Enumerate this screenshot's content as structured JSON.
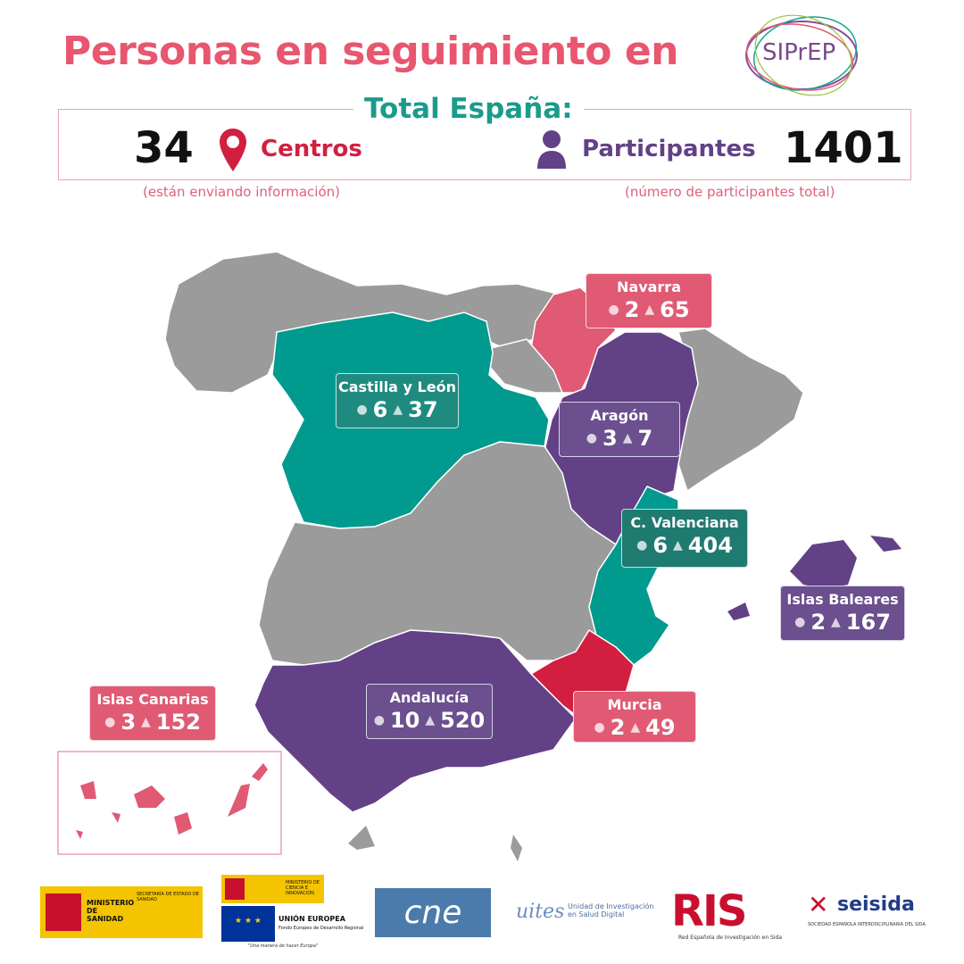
{
  "header": {
    "title": "Personas en seguimiento en",
    "logo_text": "SIPrEP"
  },
  "totals": {
    "title": "Total España:",
    "centros_count": "34",
    "centros_label": "Centros",
    "centros_note": "(están enviando información)",
    "participantes_label": "Participantes",
    "participantes_count": "1401",
    "participantes_note": "(número de participantes total)"
  },
  "colors": {
    "pink": "#e05a74",
    "purple": "#624187",
    "teal": "#009a8e",
    "red": "#d21f40",
    "gray": "#9b9b9b"
  },
  "regions": [
    {
      "name": "Navarra",
      "centros": "2",
      "participantes": "65",
      "color": "#e05a74"
    },
    {
      "name": "Castilla y León",
      "centros": "6",
      "participantes": "37",
      "color": "#009a8e"
    },
    {
      "name": "Aragón",
      "centros": "3",
      "participantes": "7",
      "color": "#624187"
    },
    {
      "name": "C. Valenciana",
      "centros": "6",
      "participantes": "404",
      "color": "#1f7a70"
    },
    {
      "name": "Islas Baleares",
      "centros": "2",
      "participantes": "167",
      "color": "#6b4f8e"
    },
    {
      "name": "Islas Canarias",
      "centros": "3",
      "participantes": "152",
      "color": "#e05a74"
    },
    {
      "name": "Andalucía",
      "centros": "10",
      "participantes": "520",
      "color": "#624187"
    },
    {
      "name": "Murcia",
      "centros": "2",
      "participantes": "49",
      "color": "#e05a74"
    }
  ],
  "footer_logos": {
    "ministerio": "MINISTERIO DE SANIDAD",
    "ministerio_sub": "SECRETARÍA DE ESTADO DE SANIDAD",
    "ciencia": "MINISTERIO DE CIENCIA E INNOVACIÓN",
    "union": "UNIÓN EUROPEA",
    "union_sub": "Fondo Europeo de Desarrollo Regional",
    "union_motto": "\"Una manera de hacer Europa\"",
    "cne": "cne",
    "uites": "uites",
    "uites_text": "Unidad de Investigación en Salud Digital",
    "ris": "RIS",
    "ris_text": "Red Española de Investigación en Sida",
    "seisida": "seisida",
    "seisida_text": "SOCIEDAD ESPAÑOLA INTERDISCIPLINARIA DEL SIDA"
  }
}
